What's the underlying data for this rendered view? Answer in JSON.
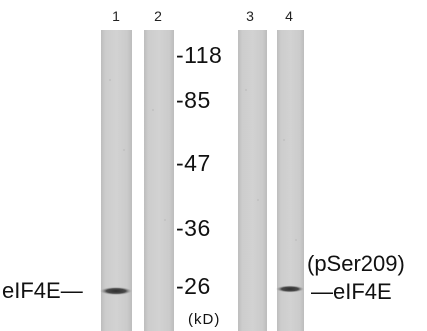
{
  "lanes": [
    {
      "number": "1",
      "band": true
    },
    {
      "number": "2",
      "band": false
    },
    {
      "number": "3",
      "band": false
    },
    {
      "number": "4",
      "band": true
    }
  ],
  "markers": [
    {
      "label": "-118"
    },
    {
      "label": "-85"
    },
    {
      "label": "-47"
    },
    {
      "label": "-36"
    },
    {
      "label": "-26"
    }
  ],
  "unit_label": "(kD)",
  "left_band_label": "eIF4E—",
  "right_band_label": "—eIF4E",
  "modification_label": "(pSer209)",
  "colors": {
    "lane_background": "#c9c9c9",
    "band": "#3a3a3a",
    "text": "#111111"
  }
}
